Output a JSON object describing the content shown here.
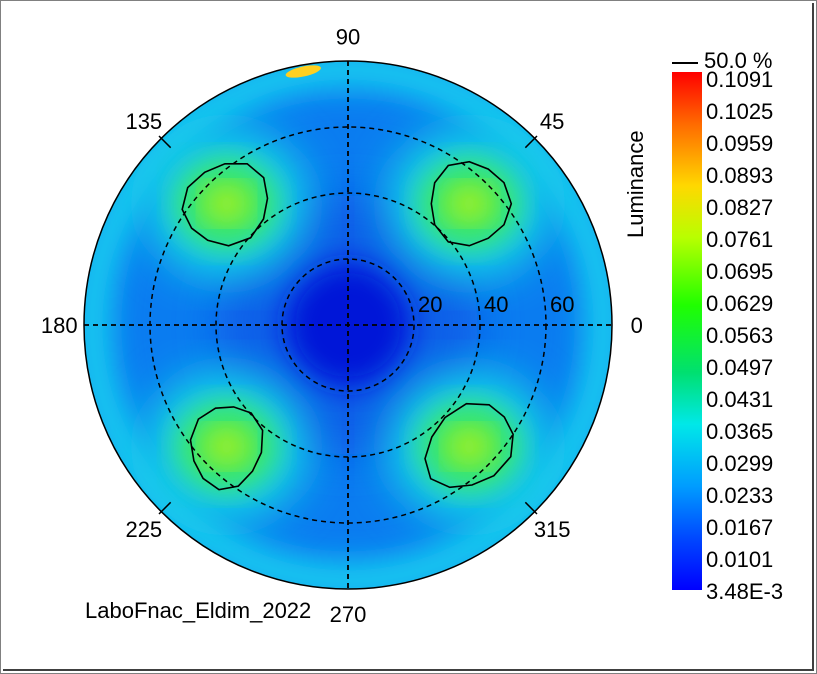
{
  "chart_data": {
    "type": "heatmap",
    "projection": "polar-conoscopic",
    "angle_labels": [
      {
        "angle": 90,
        "text": "90"
      },
      {
        "angle": 45,
        "text": "45"
      },
      {
        "angle": 135,
        "text": "135"
      },
      {
        "angle": 180,
        "text": "180"
      },
      {
        "angle": 0,
        "text": "0"
      },
      {
        "angle": 225,
        "text": "225"
      },
      {
        "angle": 315,
        "text": "315"
      },
      {
        "angle": 270,
        "text": "270"
      }
    ],
    "radial_rings": [
      20,
      40,
      60
    ],
    "radial_max": 80,
    "radial_labels": [
      "20",
      "40",
      "60"
    ],
    "colorbar_title": "Luminance",
    "colorbar_ticks": [
      "0.1091",
      "0.1025",
      "0.0959",
      "0.0893",
      "0.0827",
      "0.0761",
      "0.0695",
      "0.0629",
      "0.0563",
      "0.0497",
      "0.0431",
      "0.0365",
      "0.0299",
      "0.0233",
      "0.0167",
      "0.0101",
      "3.48E-3"
    ],
    "value_range": [
      0.00348,
      0.1091
    ],
    "contour_legend": "50.0 %",
    "contour_level_fraction": 0.5,
    "peak_lobes": [
      {
        "angle_deg": 45,
        "polar_deg": 52
      },
      {
        "angle_deg": 135,
        "polar_deg": 52
      },
      {
        "angle_deg": 225,
        "polar_deg": 52
      },
      {
        "angle_deg": 315,
        "polar_deg": 52
      }
    ],
    "grid": true
  },
  "caption": "LaboFnac_Eldim_2022",
  "colors": {
    "background": "#ffffff",
    "grid": "#000000"
  }
}
